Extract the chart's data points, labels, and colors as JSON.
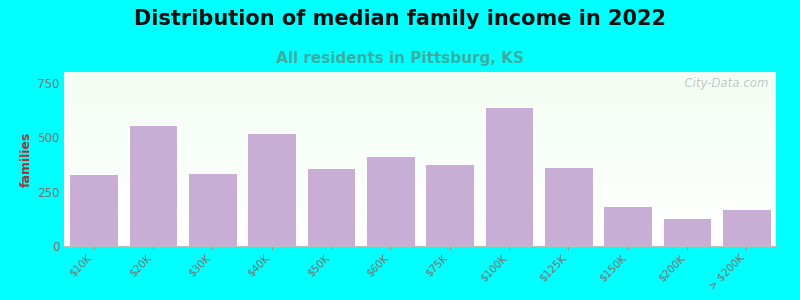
{
  "title": "Distribution of median family income in 2022",
  "subtitle": "All residents in Pittsburg, KS",
  "ylabel": "families",
  "categories": [
    "$10K",
    "$20K",
    "$30K",
    "$40K",
    "$50K",
    "$60K",
    "$75K",
    "$100K",
    "$125K",
    "$150K",
    "$200K",
    "> $200K"
  ],
  "values": [
    330,
    555,
    335,
    520,
    360,
    415,
    375,
    640,
    365,
    185,
    130,
    170
  ],
  "bar_color": "#c8aed4",
  "bar_edgecolor": "#ffffff",
  "background_color": "#00ffff",
  "title_fontsize": 15,
  "subtitle_fontsize": 11,
  "subtitle_color": "#3aada0",
  "ylabel_color": "#aa3333",
  "tick_color": "#886666",
  "ylim": [
    0,
    800
  ],
  "yticks": [
    0,
    250,
    500,
    750
  ],
  "watermark": "  City-Data.com"
}
